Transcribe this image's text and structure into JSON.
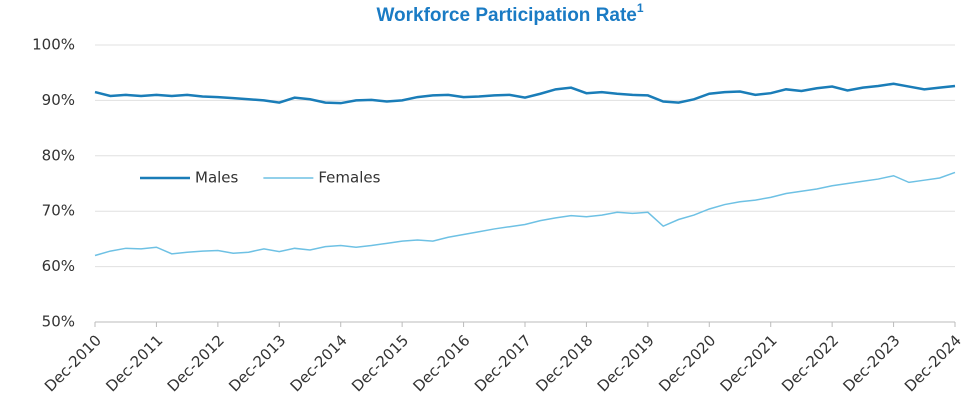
{
  "chart_data": {
    "type": "line",
    "title": "Workforce Participation Rate",
    "title_superscript": "1",
    "categories": [
      "Dec-2010",
      null,
      null,
      null,
      "Dec-2011",
      null,
      null,
      null,
      "Dec-2012",
      null,
      null,
      null,
      "Dec-2013",
      null,
      null,
      null,
      "Dec-2014",
      null,
      null,
      null,
      "Dec-2015",
      null,
      null,
      null,
      "Dec-2016",
      null,
      null,
      null,
      "Dec-2017",
      null,
      null,
      null,
      "Dec-2018",
      null,
      null,
      null,
      "Dec-2019",
      null,
      null,
      null,
      "Dec-2020",
      null,
      null,
      null,
      "Dec-2021",
      null,
      null,
      null,
      "Dec-2022",
      null,
      null,
      null,
      "Dec-2023",
      null,
      null,
      null,
      "Dec-2024"
    ],
    "series": [
      {
        "name": "Males",
        "color": "#1a7db8",
        "values": [
          91.5,
          90.8,
          91.0,
          90.8,
          91.0,
          90.8,
          91.0,
          90.7,
          90.6,
          90.4,
          90.2,
          90.0,
          89.6,
          90.5,
          90.2,
          89.6,
          89.5,
          90.0,
          90.1,
          89.8,
          90.0,
          90.6,
          90.9,
          91.0,
          90.6,
          90.7,
          90.9,
          91.0,
          90.5,
          91.2,
          92.0,
          92.3,
          91.3,
          91.5,
          91.2,
          91.0,
          90.9,
          89.8,
          89.6,
          90.2,
          91.2,
          91.5,
          91.6,
          91.0,
          91.3,
          92.0,
          91.7,
          92.2,
          92.5,
          91.8,
          92.3,
          92.6,
          93.0,
          92.5,
          92.0,
          92.3,
          92.6
        ]
      },
      {
        "name": "Females",
        "color": "#6ec1e4",
        "values": [
          62.0,
          62.8,
          63.3,
          63.2,
          63.5,
          62.3,
          62.6,
          62.8,
          62.9,
          62.4,
          62.6,
          63.2,
          62.7,
          63.3,
          63.0,
          63.6,
          63.8,
          63.5,
          63.8,
          64.2,
          64.6,
          64.8,
          64.6,
          65.3,
          65.8,
          66.3,
          66.8,
          67.2,
          67.6,
          68.3,
          68.8,
          69.2,
          69.0,
          69.3,
          69.8,
          69.6,
          69.8,
          67.3,
          68.5,
          69.3,
          70.4,
          71.2,
          71.7,
          72.0,
          72.5,
          73.2,
          73.6,
          74.0,
          74.6,
          75.0,
          75.4,
          75.8,
          76.4,
          75.2,
          75.6,
          76.0,
          77.0
        ]
      }
    ],
    "ylim": [
      50,
      100
    ],
    "yticks": [
      {
        "value": 50,
        "label": "50%"
      },
      {
        "value": 60,
        "label": "60%"
      },
      {
        "value": 70,
        "label": "70%"
      },
      {
        "value": 80,
        "label": "80%"
      },
      {
        "value": 90,
        "label": "90%"
      },
      {
        "value": 100,
        "label": "100%"
      }
    ],
    "grid": true,
    "legend": "left"
  }
}
